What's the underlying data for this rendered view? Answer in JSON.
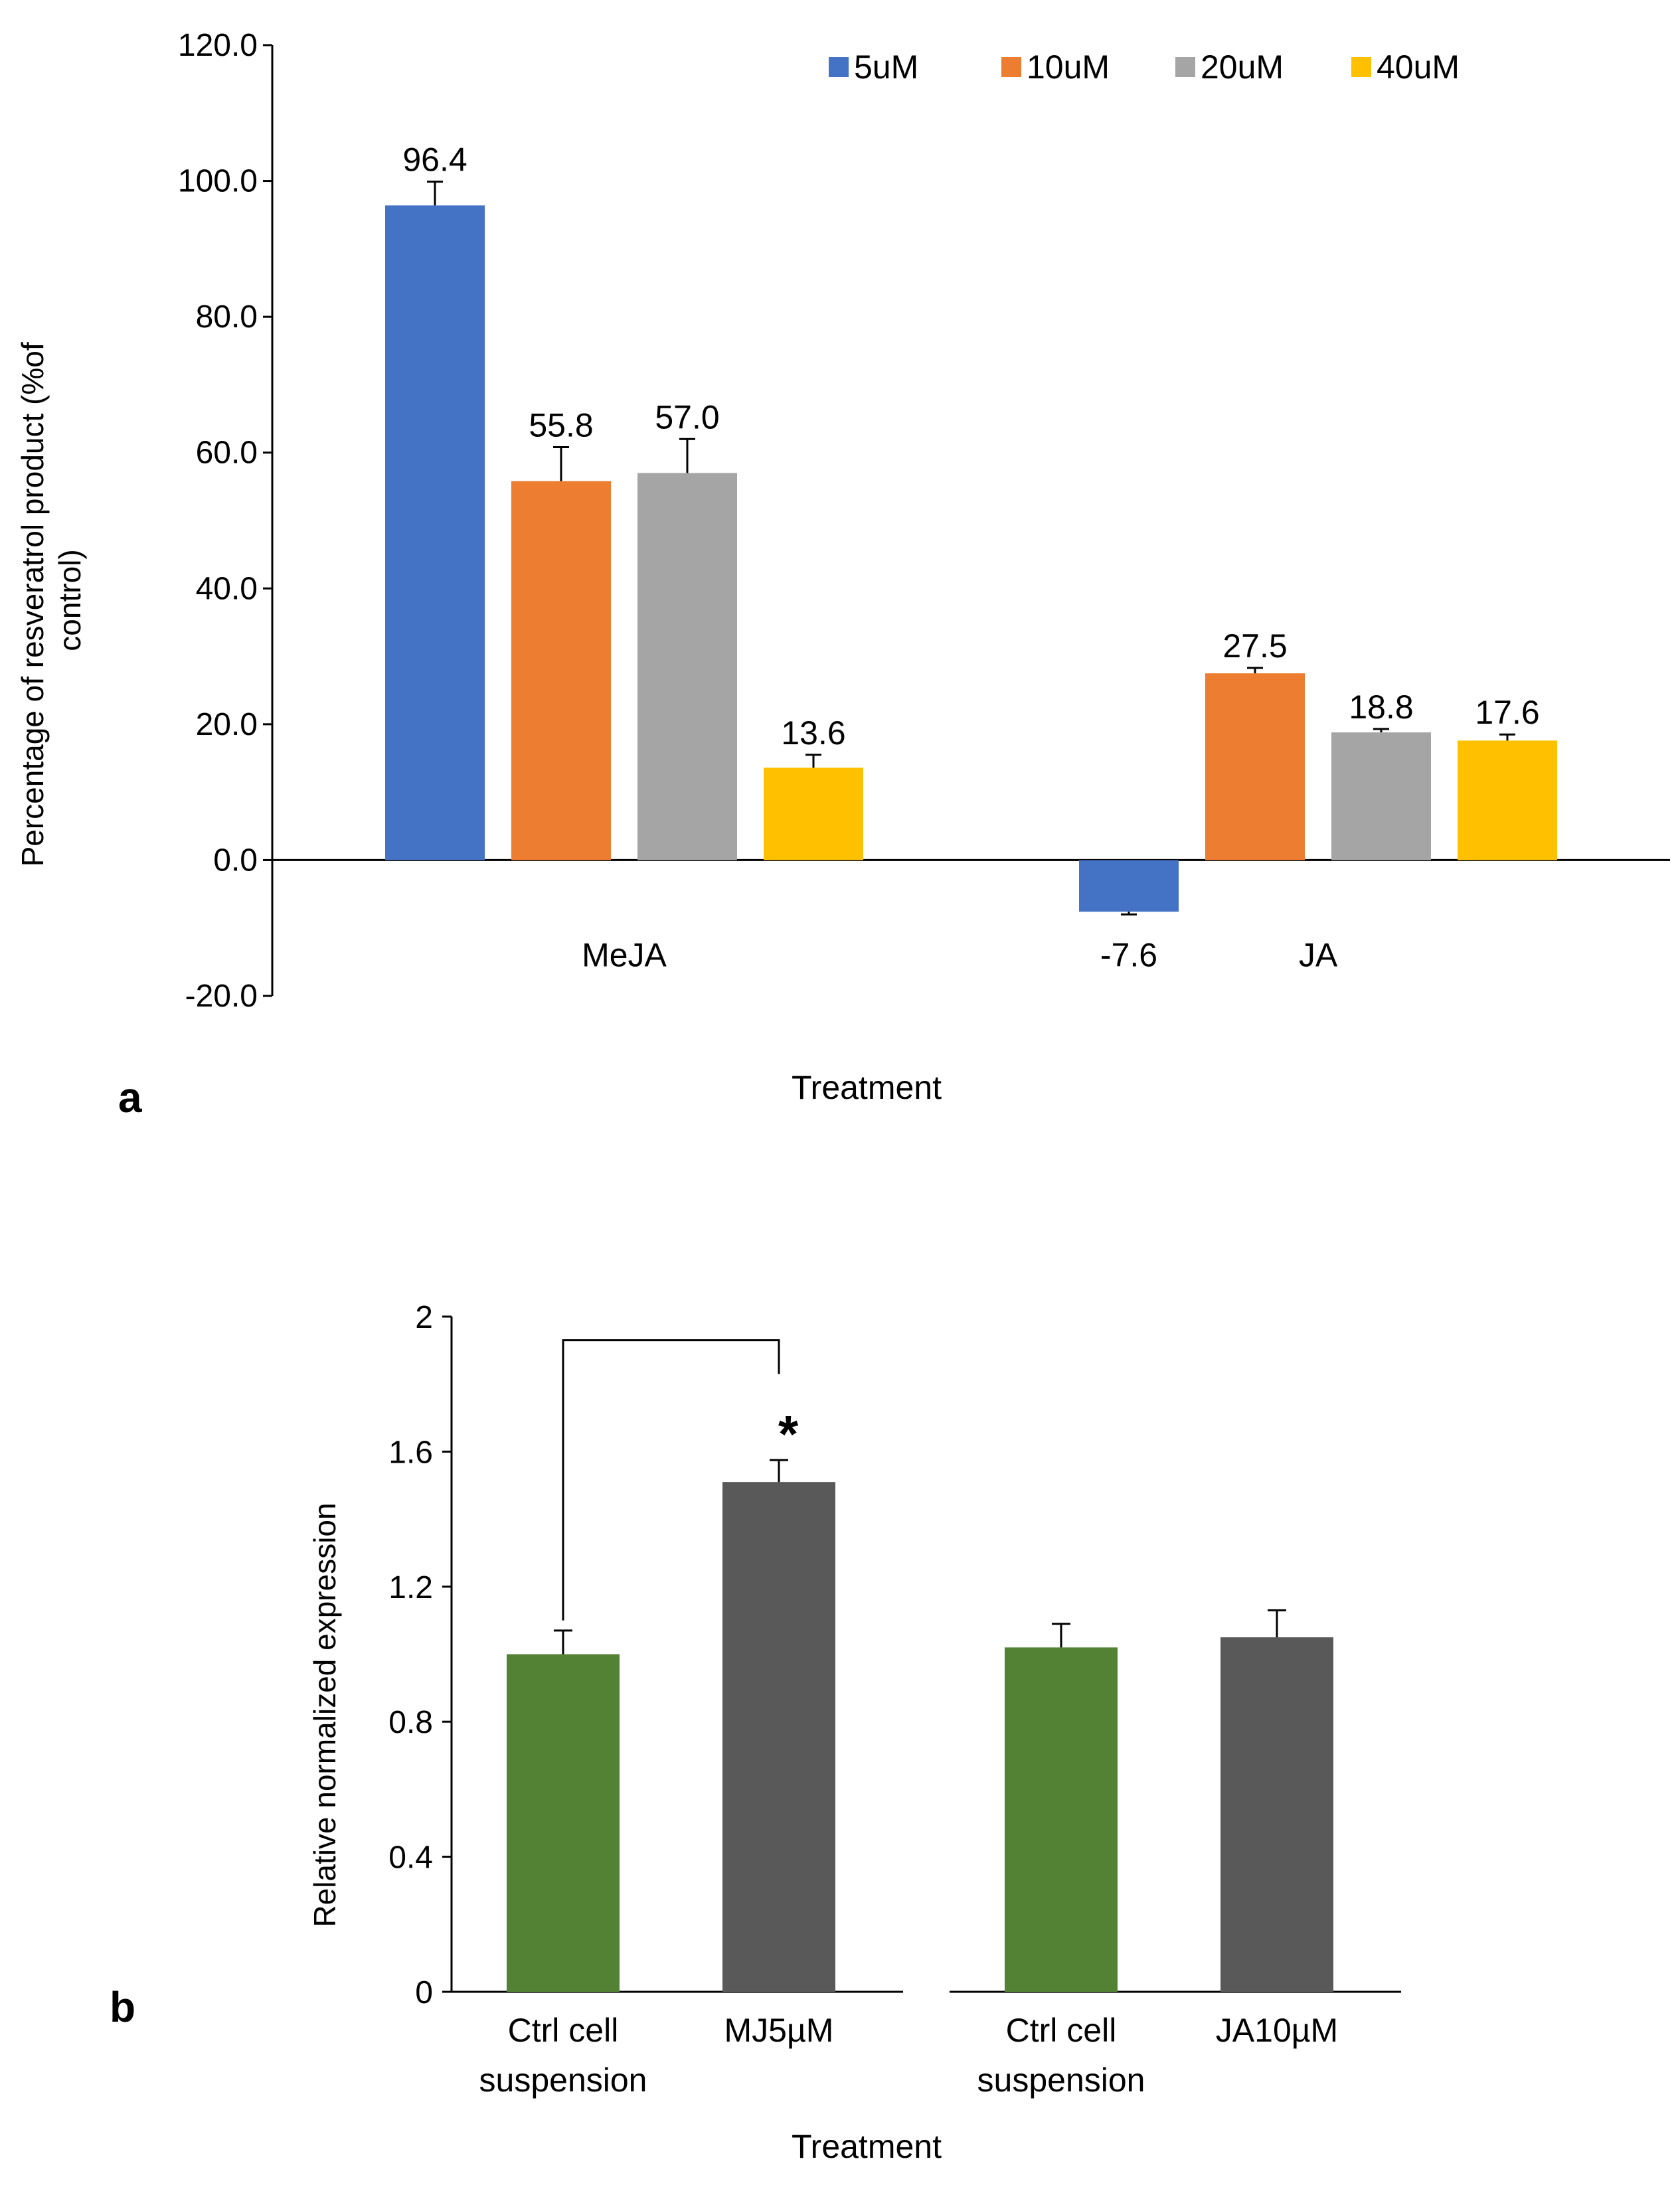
{
  "chart_data": [
    {
      "type": "bar",
      "panel_label": "a",
      "xlabel": "Treatment",
      "ylabel_lines": [
        "Percentage of resveratrol product (%of",
        "control)"
      ],
      "ylim": [
        -20,
        120
      ],
      "yticks": [
        -20,
        0,
        20,
        40,
        60,
        80,
        100,
        120
      ],
      "ytick_labels": [
        "-20.0",
        "0.0",
        "20.0",
        "40.0",
        "60.0",
        "80.0",
        "100.0",
        "120.0"
      ],
      "categories": [
        "MeJA",
        "JA"
      ],
      "legend_position": "top-right",
      "series": [
        {
          "name": "5uM",
          "color": "#4472C4",
          "values": [
            96.4,
            -7.6
          ],
          "errors": [
            3.5,
            0.4
          ],
          "labels": [
            "96.4",
            "-7.6"
          ]
        },
        {
          "name": "10uM",
          "color": "#ED7D31",
          "values": [
            55.8,
            27.5
          ],
          "errors": [
            5.0,
            0.8
          ],
          "labels": [
            "55.8",
            "27.5"
          ]
        },
        {
          "name": "20uM",
          "color": "#A5A5A5",
          "values": [
            57.0,
            18.8
          ],
          "errors": [
            5.0,
            0.5
          ],
          "labels": [
            "57.0",
            "18.8"
          ]
        },
        {
          "name": "40uM",
          "color": "#FFC000",
          "values": [
            13.6,
            17.6
          ],
          "errors": [
            1.9,
            0.9
          ],
          "labels": [
            "13.6",
            "17.6"
          ]
        }
      ]
    },
    {
      "type": "bar",
      "panel_label": "b",
      "xlabel": "Treatment",
      "ylabel": "Relative  normalized expression",
      "ylim": [
        0,
        2
      ],
      "yticks": [
        0,
        0.4,
        0.8,
        1.2,
        1.6,
        2
      ],
      "ytick_labels": [
        "0",
        "0.4",
        "0.8",
        "1.2",
        "1.6",
        "2"
      ],
      "categories": [
        [
          "Ctrl cell",
          "suspension"
        ],
        [
          "MJ5µM"
        ],
        [
          "Ctrl cell",
          "suspension"
        ],
        [
          "JA10µM"
        ]
      ],
      "values": [
        1.0,
        1.51,
        1.02,
        1.05
      ],
      "errors": [
        0.07,
        0.065,
        0.07,
        0.08
      ],
      "colors": [
        "#548235",
        "#595959",
        "#548235",
        "#595959"
      ],
      "significance": {
        "from": 0,
        "to": 1,
        "label": "*"
      }
    }
  ]
}
